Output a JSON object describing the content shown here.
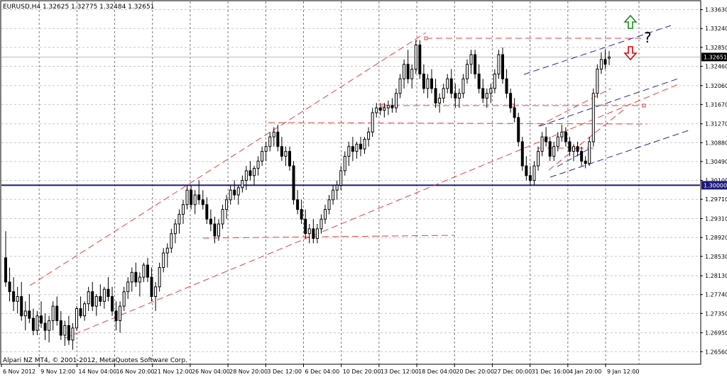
{
  "header": {
    "info_line": "EURUSD,H4  1.32625 1.32775 1.32484 1.32651"
  },
  "footer": {
    "copyright": "Alpari NZ MT4, © 2001-2012, MetaQuotes Software Corp."
  },
  "annotations": {
    "question_mark": "?",
    "up_arrow_color": "#1a8f1a",
    "down_arrow_color": "#e00000"
  },
  "colors": {
    "candle": "#000000",
    "trend_red": "#e84040",
    "trend_blue": "#2a2a9a",
    "support_line": "#1a1a7a",
    "grid": "#c8c8c8",
    "current_price_bg": "#000000",
    "support_price_bg": "#1a1a7a"
  },
  "chart_data": {
    "type": "candlestick",
    "symbol": "EURUSD",
    "timeframe": "H4",
    "grid": true,
    "ylim": [
      1.263,
      1.338
    ],
    "y_ticks": [
      "1.33630",
      "1.33240",
      "1.32850",
      "1.32460",
      "1.32060",
      "1.31670",
      "1.31270",
      "1.30880",
      "1.30490",
      "1.30100",
      "1.29710",
      "1.29310",
      "1.28920",
      "1.28530",
      "1.28130",
      "1.27740",
      "1.27350",
      "1.26950",
      "1.26560"
    ],
    "x_ticks": [
      "6 Nov 2012",
      "9 Nov 12:00",
      "14 Nov 04:00",
      "16 Nov 20:00",
      "21 Nov 12:00",
      "26 Nov 04:00",
      "28 Nov 20:00",
      "3 Dec 12:00",
      "6 Dec 04:00",
      "10 Dec 20:00",
      "13 Dec 12:00",
      "18 Dec 04:00",
      "20 Dec 20:00",
      "27 Dec 00:00",
      "31 Dec 16:00",
      "4 Jan 20:00",
      "9 Jan 12:00"
    ],
    "current_price": "1.32651",
    "support_level": "1.30000",
    "ohlc": [
      [
        1.285,
        1.2905,
        1.279,
        1.28
      ],
      [
        1.28,
        1.283,
        1.276,
        1.278
      ],
      [
        1.278,
        1.281,
        1.274,
        1.276
      ],
      [
        1.276,
        1.279,
        1.2735,
        1.277
      ],
      [
        1.277,
        1.28,
        1.272,
        1.273
      ],
      [
        1.273,
        1.276,
        1.27,
        1.274
      ],
      [
        1.274,
        1.2775,
        1.2715,
        1.2725
      ],
      [
        1.2725,
        1.2745,
        1.269,
        1.27
      ],
      [
        1.27,
        1.274,
        1.269,
        1.273
      ],
      [
        1.273,
        1.276,
        1.2705,
        1.2715
      ],
      [
        1.2715,
        1.2735,
        1.268,
        1.27
      ],
      [
        1.27,
        1.273,
        1.2675,
        1.272
      ],
      [
        1.272,
        1.276,
        1.27,
        1.275
      ],
      [
        1.275,
        1.277,
        1.271,
        1.272
      ],
      [
        1.272,
        1.274,
        1.268,
        1.269
      ],
      [
        1.269,
        1.272,
        1.2668,
        1.271
      ],
      [
        1.271,
        1.273,
        1.267,
        1.268
      ],
      [
        1.268,
        1.2715,
        1.266,
        1.2705
      ],
      [
        1.2705,
        1.275,
        1.27,
        1.2745
      ],
      [
        1.2745,
        1.277,
        1.2725,
        1.273
      ],
      [
        1.273,
        1.276,
        1.272,
        1.2755
      ],
      [
        1.2755,
        1.279,
        1.274,
        1.278
      ],
      [
        1.278,
        1.28,
        1.274,
        1.275
      ],
      [
        1.275,
        1.2775,
        1.273,
        1.277
      ],
      [
        1.277,
        1.2795,
        1.275,
        1.276
      ],
      [
        1.276,
        1.279,
        1.2745,
        1.2785
      ],
      [
        1.2785,
        1.281,
        1.276,
        1.277
      ],
      [
        1.277,
        1.279,
        1.273,
        1.274
      ],
      [
        1.274,
        1.276,
        1.27,
        1.272
      ],
      [
        1.272,
        1.276,
        1.2695,
        1.275
      ],
      [
        1.275,
        1.279,
        1.274,
        1.278
      ],
      [
        1.278,
        1.281,
        1.2765,
        1.28
      ],
      [
        1.28,
        1.283,
        1.278,
        1.282
      ],
      [
        1.282,
        1.284,
        1.279,
        1.28
      ],
      [
        1.28,
        1.282,
        1.277,
        1.281
      ],
      [
        1.281,
        1.284,
        1.28,
        1.2835
      ],
      [
        1.2835,
        1.285,
        1.28,
        1.281
      ],
      [
        1.281,
        1.283,
        1.276,
        1.277
      ],
      [
        1.277,
        1.28,
        1.274,
        1.279
      ],
      [
        1.279,
        1.284,
        1.278,
        1.283
      ],
      [
        1.283,
        1.287,
        1.282,
        1.286
      ],
      [
        1.286,
        1.288,
        1.283,
        1.287
      ],
      [
        1.287,
        1.291,
        1.286,
        1.29
      ],
      [
        1.29,
        1.293,
        1.288,
        1.292
      ],
      [
        1.292,
        1.295,
        1.29,
        1.294
      ],
      [
        1.294,
        1.297,
        1.292,
        1.296
      ],
      [
        1.296,
        1.3,
        1.295,
        1.299
      ],
      [
        1.299,
        1.3,
        1.295,
        1.296
      ],
      [
        1.296,
        1.299,
        1.294,
        1.298
      ],
      [
        1.298,
        1.301,
        1.296,
        1.297
      ],
      [
        1.297,
        1.299,
        1.295,
        1.296
      ],
      [
        1.296,
        1.2975,
        1.292,
        1.293
      ],
      [
        1.293,
        1.295,
        1.2905,
        1.292
      ],
      [
        1.292,
        1.2935,
        1.288,
        1.2895
      ],
      [
        1.2895,
        1.293,
        1.2885,
        1.292
      ],
      [
        1.292,
        1.296,
        1.291,
        1.295
      ],
      [
        1.295,
        1.298,
        1.293,
        1.297
      ],
      [
        1.297,
        1.3,
        1.296,
        1.299
      ],
      [
        1.299,
        1.301,
        1.297,
        1.298
      ],
      [
        1.298,
        1.3,
        1.296,
        1.2995
      ],
      [
        1.2995,
        1.302,
        1.2985,
        1.301
      ],
      [
        1.301,
        1.304,
        1.299,
        1.303
      ],
      [
        1.303,
        1.305,
        1.301,
        1.302
      ],
      [
        1.302,
        1.304,
        1.3,
        1.3035
      ],
      [
        1.3035,
        1.306,
        1.302,
        1.305
      ],
      [
        1.305,
        1.308,
        1.304,
        1.307
      ],
      [
        1.307,
        1.309,
        1.305,
        1.308
      ],
      [
        1.308,
        1.311,
        1.307,
        1.31
      ],
      [
        1.31,
        1.312,
        1.308,
        1.311
      ],
      [
        1.311,
        1.3125,
        1.307,
        1.308
      ],
      [
        1.308,
        1.31,
        1.305,
        1.306
      ],
      [
        1.306,
        1.308,
        1.304,
        1.307
      ],
      [
        1.307,
        1.308,
        1.303,
        1.304
      ],
      [
        1.304,
        1.305,
        1.296,
        1.297
      ],
      [
        1.297,
        1.299,
        1.294,
        1.295
      ],
      [
        1.295,
        1.297,
        1.292,
        1.293
      ],
      [
        1.293,
        1.295,
        1.289,
        1.29
      ],
      [
        1.29,
        1.292,
        1.288,
        1.291
      ],
      [
        1.291,
        1.293,
        1.288,
        1.289
      ],
      [
        1.289,
        1.292,
        1.288,
        1.291
      ],
      [
        1.291,
        1.294,
        1.29,
        1.293
      ],
      [
        1.293,
        1.296,
        1.292,
        1.295
      ],
      [
        1.295,
        1.298,
        1.294,
        1.297
      ],
      [
        1.297,
        1.3,
        1.296,
        1.299
      ],
      [
        1.299,
        1.301,
        1.297,
        1.3
      ],
      [
        1.3,
        1.304,
        1.299,
        1.303
      ],
      [
        1.303,
        1.307,
        1.302,
        1.306
      ],
      [
        1.306,
        1.309,
        1.304,
        1.308
      ],
      [
        1.308,
        1.31,
        1.305,
        1.307
      ],
      [
        1.307,
        1.309,
        1.3055,
        1.3085
      ],
      [
        1.3085,
        1.31,
        1.306,
        1.3075
      ],
      [
        1.3075,
        1.31,
        1.3065,
        1.3095
      ],
      [
        1.3095,
        1.312,
        1.308,
        1.311
      ],
      [
        1.311,
        1.316,
        1.31,
        1.315
      ],
      [
        1.315,
        1.317,
        1.314,
        1.316
      ],
      [
        1.316,
        1.317,
        1.3145,
        1.3155
      ],
      [
        1.3155,
        1.317,
        1.314,
        1.316
      ],
      [
        1.316,
        1.3175,
        1.3145,
        1.3165
      ],
      [
        1.3165,
        1.318,
        1.315,
        1.316
      ],
      [
        1.316,
        1.32,
        1.315,
        1.319
      ],
      [
        1.319,
        1.323,
        1.318,
        1.322
      ],
      [
        1.322,
        1.326,
        1.32,
        1.325
      ],
      [
        1.325,
        1.328,
        1.321,
        1.322
      ],
      [
        1.322,
        1.325,
        1.32,
        1.324
      ],
      [
        1.324,
        1.33,
        1.323,
        1.329
      ],
      [
        1.329,
        1.33,
        1.322,
        1.323
      ],
      [
        1.323,
        1.325,
        1.319,
        1.32
      ],
      [
        1.32,
        1.323,
        1.318,
        1.322
      ],
      [
        1.322,
        1.324,
        1.319,
        1.32
      ],
      [
        1.32,
        1.322,
        1.316,
        1.317
      ],
      [
        1.317,
        1.319,
        1.315,
        1.318
      ],
      [
        1.318,
        1.321,
        1.317,
        1.32
      ],
      [
        1.32,
        1.323,
        1.319,
        1.322
      ],
      [
        1.322,
        1.324,
        1.318,
        1.319
      ],
      [
        1.319,
        1.321,
        1.316,
        1.318
      ],
      [
        1.318,
        1.32,
        1.316,
        1.319
      ],
      [
        1.319,
        1.323,
        1.318,
        1.322
      ],
      [
        1.322,
        1.326,
        1.321,
        1.325
      ],
      [
        1.325,
        1.328,
        1.323,
        1.327
      ],
      [
        1.327,
        1.328,
        1.322,
        1.323
      ],
      [
        1.323,
        1.325,
        1.319,
        1.32
      ],
      [
        1.32,
        1.322,
        1.317,
        1.318
      ],
      [
        1.318,
        1.32,
        1.316,
        1.319
      ],
      [
        1.319,
        1.321,
        1.317,
        1.32
      ],
      [
        1.32,
        1.324,
        1.319,
        1.323
      ],
      [
        1.323,
        1.328,
        1.322,
        1.327
      ],
      [
        1.327,
        1.3285,
        1.321,
        1.322
      ],
      [
        1.322,
        1.324,
        1.318,
        1.319
      ],
      [
        1.319,
        1.32,
        1.315,
        1.316
      ],
      [
        1.316,
        1.318,
        1.313,
        1.314
      ],
      [
        1.314,
        1.315,
        1.308,
        1.309
      ],
      [
        1.309,
        1.31,
        1.303,
        1.304
      ],
      [
        1.304,
        1.306,
        1.301,
        1.302
      ],
      [
        1.302,
        1.304,
        1.3,
        1.301
      ],
      [
        1.301,
        1.305,
        1.3,
        1.304
      ],
      [
        1.304,
        1.308,
        1.303,
        1.307
      ],
      [
        1.307,
        1.311,
        1.306,
        1.31
      ],
      [
        1.31,
        1.312,
        1.308,
        1.309
      ],
      [
        1.309,
        1.31,
        1.305,
        1.306
      ],
      [
        1.306,
        1.309,
        1.305,
        1.308
      ],
      [
        1.308,
        1.311,
        1.307,
        1.31
      ],
      [
        1.31,
        1.3125,
        1.309,
        1.311
      ],
      [
        1.311,
        1.312,
        1.308,
        1.309
      ],
      [
        1.309,
        1.31,
        1.306,
        1.307
      ],
      [
        1.307,
        1.3085,
        1.305,
        1.308
      ],
      [
        1.308,
        1.309,
        1.306,
        1.307
      ],
      [
        1.307,
        1.308,
        1.304,
        1.305
      ],
      [
        1.305,
        1.306,
        1.3035,
        1.3045
      ],
      [
        1.3045,
        1.31,
        1.304,
        1.309
      ],
      [
        1.309,
        1.32,
        1.308,
        1.319
      ],
      [
        1.319,
        1.325,
        1.318,
        1.324
      ],
      [
        1.324,
        1.3275,
        1.323,
        1.326
      ],
      [
        1.326,
        1.328,
        1.324,
        1.325
      ],
      [
        1.32625,
        1.32775,
        1.32484,
        1.32651
      ]
    ]
  }
}
